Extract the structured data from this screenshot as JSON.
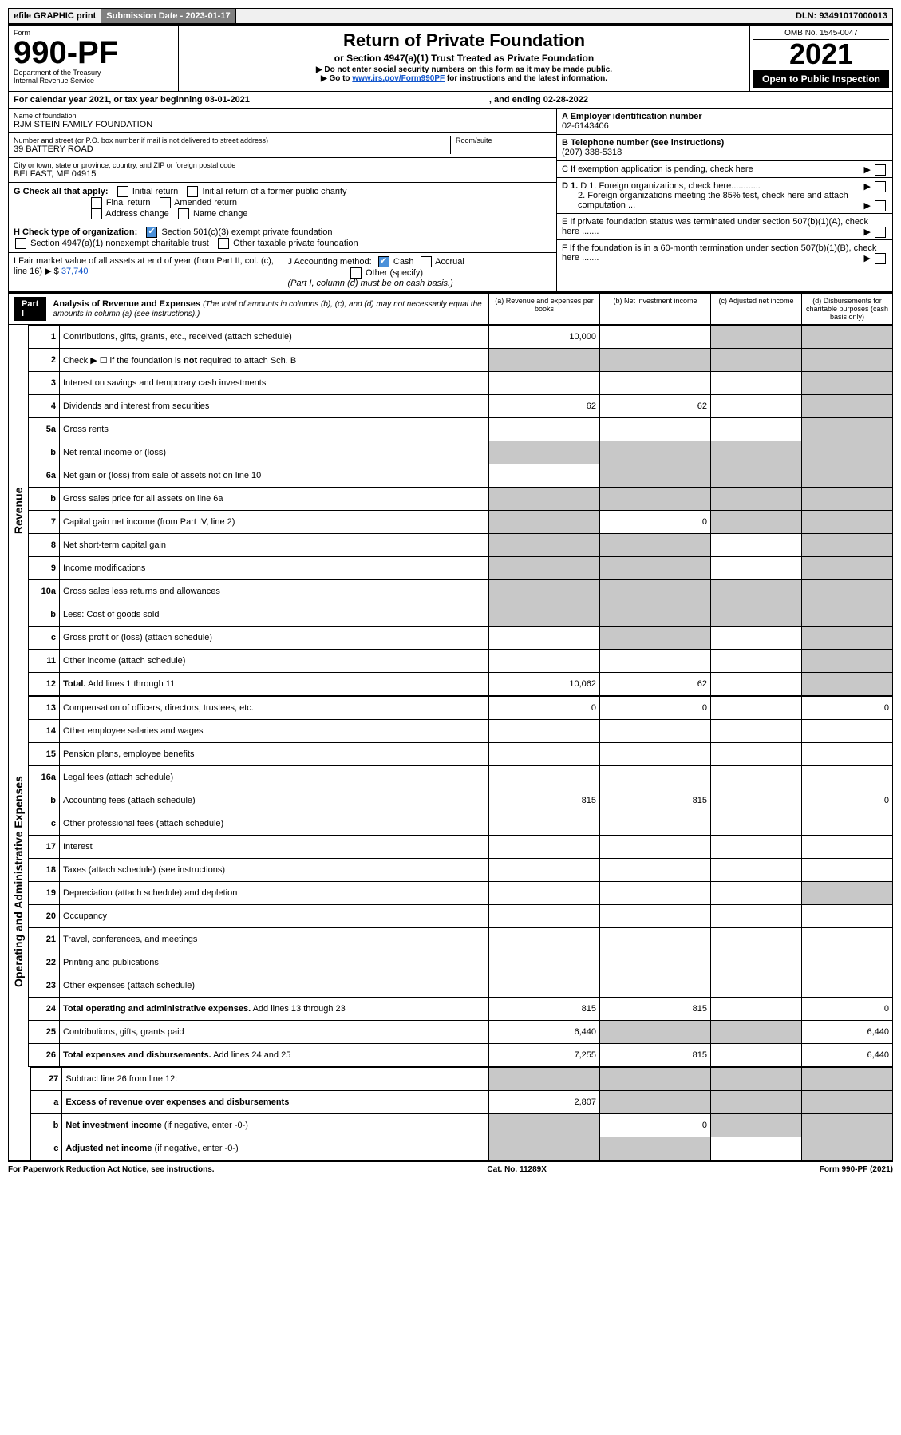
{
  "topbar": {
    "efile": "efile GRAPHIC print",
    "submission_label": "Submission Date - 2023-01-17",
    "dln": "DLN: 93491017000013"
  },
  "header": {
    "form_label": "Form",
    "form_number": "990-PF",
    "dept": "Department of the Treasury",
    "irs": "Internal Revenue Service",
    "title": "Return of Private Foundation",
    "subtitle": "or Section 4947(a)(1) Trust Treated as Private Foundation",
    "note1": "▶ Do not enter social security numbers on this form as it may be made public.",
    "note2_prefix": "▶ Go to ",
    "note2_link": "www.irs.gov/Form990PF",
    "note2_suffix": " for instructions and the latest information.",
    "omb": "OMB No. 1545-0047",
    "year": "2021",
    "open": "Open to Public Inspection"
  },
  "cal": {
    "line": "For calendar year 2021, or tax year beginning 03-01-2021",
    "ending": ", and ending 02-28-2022"
  },
  "left": {
    "name_label": "Name of foundation",
    "name": "RJM STEIN FAMILY FOUNDATION",
    "addr_label": "Number and street (or P.O. box number if mail is not delivered to street address)",
    "addr": "39 BATTERY ROAD",
    "room": "Room/suite",
    "city_label": "City or town, state or province, country, and ZIP or foreign postal code",
    "city": "BELFAST, ME  04915",
    "g": "G Check all that apply:",
    "g_opts": [
      "Initial return",
      "Initial return of a former public charity",
      "Final return",
      "Amended return",
      "Address change",
      "Name change"
    ],
    "h": "H Check type of organization:",
    "h1": "Section 501(c)(3) exempt private foundation",
    "h2": "Section 4947(a)(1) nonexempt charitable trust",
    "h3": "Other taxable private foundation",
    "i": "I Fair market value of all assets at end of year (from Part II, col. (c), line 16) ▶ $",
    "i_val": "37,740",
    "j": "J Accounting method:",
    "j1": "Cash",
    "j2": "Accrual",
    "j3": "Other (specify)",
    "j_note": "(Part I, column (d) must be on cash basis.)"
  },
  "right": {
    "a_label": "A Employer identification number",
    "a_val": "02-6143406",
    "b_label": "B Telephone number (see instructions)",
    "b_val": "(207) 338-5318",
    "c": "C If exemption application is pending, check here",
    "d1": "D 1. Foreign organizations, check here............",
    "d2": "2. Foreign organizations meeting the 85% test, check here and attach computation ...",
    "e": "E If private foundation status was terminated under section 507(b)(1)(A), check here .......",
    "f": "F If the foundation is in a 60-month termination under section 507(b)(1)(B), check here ......."
  },
  "part1": {
    "label": "Part I",
    "title": "Analysis of Revenue and Expenses",
    "sub": " (The total of amounts in columns (b), (c), and (d) may not necessarily equal the amounts in column (a) (see instructions).)",
    "colA": "(a) Revenue and expenses per books",
    "colB": "(b) Net investment income",
    "colC": "(c) Adjusted net income",
    "colD": "(d) Disbursements for charitable purposes (cash basis only)"
  },
  "vlabels": {
    "revenue": "Revenue",
    "opex": "Operating and Administrative Expenses"
  },
  "rows": [
    {
      "n": "1",
      "d": "Contributions, gifts, grants, etc., received (attach schedule)",
      "a": "10,000",
      "b": "",
      "c": "grey",
      "dcol": "grey"
    },
    {
      "n": "2",
      "d": "Check ▶ ☐ if the foundation is <b>not</b> required to attach Sch. B",
      "a": "grey",
      "b": "grey",
      "c": "grey",
      "dcol": "grey"
    },
    {
      "n": "3",
      "d": "Interest on savings and temporary cash investments",
      "a": "",
      "b": "",
      "c": "",
      "dcol": "grey"
    },
    {
      "n": "4",
      "d": "Dividends and interest from securities",
      "a": "62",
      "b": "62",
      "c": "",
      "dcol": "grey"
    },
    {
      "n": "5a",
      "d": "Gross rents",
      "a": "",
      "b": "",
      "c": "",
      "dcol": "grey"
    },
    {
      "n": "b",
      "d": "Net rental income or (loss)",
      "a": "grey",
      "b": "grey",
      "c": "grey",
      "dcol": "grey"
    },
    {
      "n": "6a",
      "d": "Net gain or (loss) from sale of assets not on line 10",
      "a": "",
      "b": "grey",
      "c": "grey",
      "dcol": "grey"
    },
    {
      "n": "b",
      "d": "Gross sales price for all assets on line 6a",
      "a": "grey",
      "b": "grey",
      "c": "grey",
      "dcol": "grey"
    },
    {
      "n": "7",
      "d": "Capital gain net income (from Part IV, line 2)",
      "a": "grey",
      "b": "0",
      "c": "grey",
      "dcol": "grey"
    },
    {
      "n": "8",
      "d": "Net short-term capital gain",
      "a": "grey",
      "b": "grey",
      "c": "",
      "dcol": "grey"
    },
    {
      "n": "9",
      "d": "Income modifications",
      "a": "grey",
      "b": "grey",
      "c": "",
      "dcol": "grey"
    },
    {
      "n": "10a",
      "d": "Gross sales less returns and allowances",
      "a": "grey",
      "b": "grey",
      "c": "grey",
      "dcol": "grey"
    },
    {
      "n": "b",
      "d": "Less: Cost of goods sold",
      "a": "grey",
      "b": "grey",
      "c": "grey",
      "dcol": "grey"
    },
    {
      "n": "c",
      "d": "Gross profit or (loss) (attach schedule)",
      "a": "",
      "b": "grey",
      "c": "",
      "dcol": "grey"
    },
    {
      "n": "11",
      "d": "Other income (attach schedule)",
      "a": "",
      "b": "",
      "c": "",
      "dcol": "grey"
    },
    {
      "n": "12",
      "d": "<b>Total.</b> Add lines 1 through 11",
      "a": "10,062",
      "b": "62",
      "c": "",
      "dcol": "grey"
    }
  ],
  "rows2": [
    {
      "n": "13",
      "d": "Compensation of officers, directors, trustees, etc.",
      "a": "0",
      "b": "0",
      "c": "",
      "dcol": "0"
    },
    {
      "n": "14",
      "d": "Other employee salaries and wages",
      "a": "",
      "b": "",
      "c": "",
      "dcol": ""
    },
    {
      "n": "15",
      "d": "Pension plans, employee benefits",
      "a": "",
      "b": "",
      "c": "",
      "dcol": ""
    },
    {
      "n": "16a",
      "d": "Legal fees (attach schedule)",
      "a": "",
      "b": "",
      "c": "",
      "dcol": ""
    },
    {
      "n": "b",
      "d": "Accounting fees (attach schedule)",
      "a": "815",
      "b": "815",
      "c": "",
      "dcol": "0"
    },
    {
      "n": "c",
      "d": "Other professional fees (attach schedule)",
      "a": "",
      "b": "",
      "c": "",
      "dcol": ""
    },
    {
      "n": "17",
      "d": "Interest",
      "a": "",
      "b": "",
      "c": "",
      "dcol": ""
    },
    {
      "n": "18",
      "d": "Taxes (attach schedule) (see instructions)",
      "a": "",
      "b": "",
      "c": "",
      "dcol": ""
    },
    {
      "n": "19",
      "d": "Depreciation (attach schedule) and depletion",
      "a": "",
      "b": "",
      "c": "",
      "dcol": "grey"
    },
    {
      "n": "20",
      "d": "Occupancy",
      "a": "",
      "b": "",
      "c": "",
      "dcol": ""
    },
    {
      "n": "21",
      "d": "Travel, conferences, and meetings",
      "a": "",
      "b": "",
      "c": "",
      "dcol": ""
    },
    {
      "n": "22",
      "d": "Printing and publications",
      "a": "",
      "b": "",
      "c": "",
      "dcol": ""
    },
    {
      "n": "23",
      "d": "Other expenses (attach schedule)",
      "a": "",
      "b": "",
      "c": "",
      "dcol": ""
    },
    {
      "n": "24",
      "d": "<b>Total operating and administrative expenses.</b> Add lines 13 through 23",
      "a": "815",
      "b": "815",
      "c": "",
      "dcol": "0"
    },
    {
      "n": "25",
      "d": "Contributions, gifts, grants paid",
      "a": "6,440",
      "b": "grey",
      "c": "grey",
      "dcol": "6,440"
    },
    {
      "n": "26",
      "d": "<b>Total expenses and disbursements.</b> Add lines 24 and 25",
      "a": "7,255",
      "b": "815",
      "c": "",
      "dcol": "6,440"
    }
  ],
  "rows3": [
    {
      "n": "27",
      "d": "Subtract line 26 from line 12:",
      "a": "grey",
      "b": "grey",
      "c": "grey",
      "dcol": "grey"
    },
    {
      "n": "a",
      "d": "<b>Excess of revenue over expenses and disbursements</b>",
      "a": "2,807",
      "b": "grey",
      "c": "grey",
      "dcol": "grey"
    },
    {
      "n": "b",
      "d": "<b>Net investment income</b> (if negative, enter -0-)",
      "a": "grey",
      "b": "0",
      "c": "grey",
      "dcol": "grey"
    },
    {
      "n": "c",
      "d": "<b>Adjusted net income</b> (if negative, enter -0-)",
      "a": "grey",
      "b": "grey",
      "c": "",
      "dcol": "grey"
    }
  ],
  "footer": {
    "left": "For Paperwork Reduction Act Notice, see instructions.",
    "mid": "Cat. No. 11289X",
    "right": "Form 990-PF (2021)"
  }
}
